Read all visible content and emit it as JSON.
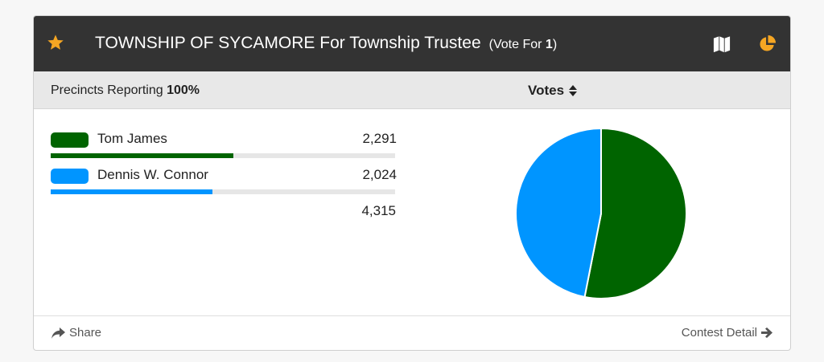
{
  "header": {
    "title": "TOWNSHIP OF SYCAMORE For Township Trustee",
    "vote_for_label": "(Vote For",
    "vote_for_count": "1",
    "vote_for_close": ")",
    "icons": [
      "star-icon",
      "map-icon",
      "pie-chart-icon"
    ],
    "accent_color": "#f5a623"
  },
  "subheader": {
    "precincts_label": "Precincts Reporting",
    "precincts_value": "100%",
    "votes_label": "Votes"
  },
  "candidates": [
    {
      "name": "Tom James",
      "votes": "2,291",
      "share": 0.531,
      "color": "#006400"
    },
    {
      "name": "Dennis W. Connor",
      "votes": "2,024",
      "share": 0.469,
      "color": "#0095ff"
    }
  ],
  "total_votes": "4,315",
  "chart_data": {
    "type": "pie",
    "categories": [
      "Tom James",
      "Dennis W. Connor"
    ],
    "values": [
      2291,
      2024
    ],
    "colors": [
      "#006400",
      "#0095ff"
    ]
  },
  "footer": {
    "share_label": "Share",
    "detail_label": "Contest Detail"
  }
}
